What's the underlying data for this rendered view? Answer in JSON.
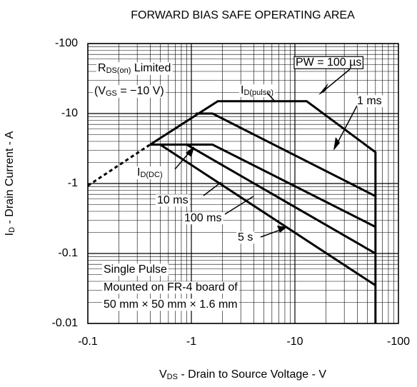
{
  "chart_data": {
    "type": "line",
    "title": "FORWARD BIAS SAFE OPERATING AREA",
    "xlabel_parts": [
      "V",
      "DS",
      " - Drain to Source Voltage - V"
    ],
    "ylabel_parts": [
      "I",
      "D",
      " - Drain Current - A"
    ],
    "log_x": true,
    "log_y": true,
    "grid": true,
    "xlim": [
      -0.1,
      -100
    ],
    "xticks": [
      -0.1,
      -1,
      -10,
      -100
    ],
    "ylim": [
      -0.01,
      -100
    ],
    "yticks": [
      -0.01,
      -0.1,
      -1,
      -10,
      -100
    ],
    "series": [
      {
        "color": "#000000",
        "style": "dashed",
        "x": [
          -0.1,
          -0.4
        ],
        "values": [
          -0.93,
          -3.6
        ]
      },
      {
        "color": "#000000",
        "style": "solid",
        "x": [
          -0.4,
          -1.8,
          -13,
          -60,
          -60
        ],
        "values": [
          -3.6,
          -15,
          -15,
          -2.8,
          -0.01
        ]
      },
      {
        "color": "#000000",
        "style": "solid",
        "x": [
          -1.1,
          -1.6,
          -60
        ],
        "values": [
          -10,
          -10,
          -0.66
        ]
      },
      {
        "color": "#000000",
        "style": "solid",
        "x": [
          -0.4,
          -1.6,
          -60
        ],
        "values": [
          -3.6,
          -3.6,
          -0.24
        ]
      },
      {
        "color": "#000000",
        "style": "solid",
        "x": [
          -0.9,
          -60
        ],
        "values": [
          -3.6,
          -0.1
        ]
      },
      {
        "color": "#000000",
        "style": "solid",
        "x": [
          -0.5,
          -60
        ],
        "values": [
          -3.6,
          -0.035
        ]
      }
    ],
    "annotations": [
      [
        "R",
        "DS(on)",
        " Limited"
      ],
      [
        "(V",
        "GS",
        " = −10 V)"
      ],
      [
        "PW = 100 µs"
      ],
      [
        "I",
        "D(pulse)"
      ],
      [
        "1 ms"
      ],
      [
        "I",
        "D(DC)"
      ],
      [
        "10 ms"
      ],
      [
        "100 ms"
      ],
      [
        "5 s"
      ],
      [
        "Single Pulse"
      ],
      [
        "Mounted on FR-4 board of"
      ],
      [
        "50 mm × 50 mm × 1.6 mm"
      ]
    ]
  }
}
